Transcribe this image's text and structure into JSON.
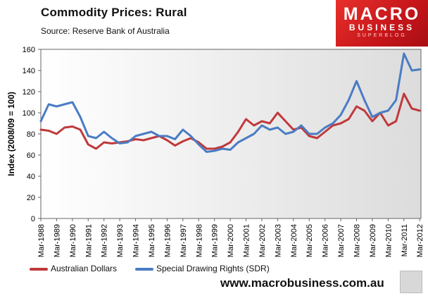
{
  "header": {
    "title": "Commodity  Prices: Rural",
    "source": "Source:  Reserve Bank of Australia"
  },
  "logo": {
    "line1": "MACRO",
    "line2": "BUSINESS",
    "line3": "SUPERBLOG"
  },
  "footer": {
    "url": "www.macrobusiness.com.au"
  },
  "colors": {
    "aud": "#c0393b",
    "sdr": "#4a7cc4"
  },
  "chart_data": {
    "type": "line",
    "title": "Commodity  Prices: Rural",
    "xlabel": "",
    "ylabel": "Index (2008/09  = 100)",
    "ylim": [
      0,
      160
    ],
    "yticks": [
      "0",
      "20",
      "40",
      "60",
      "80",
      "100",
      "120",
      "140",
      "160"
    ],
    "xticks": [
      "Mar-1988",
      "Mar-1989",
      "Mar-1990",
      "Mar-1991",
      "Mar-1992",
      "Mar-1993",
      "Mar-1994",
      "Mar-1995",
      "Mar-1996",
      "Mar-1997",
      "Mar-1998",
      "Mar-1999",
      "Mar-2000",
      "Mar-2001",
      "Mar-2002",
      "Mar-2003",
      "Mar-2004",
      "Mar-2005",
      "Mar-2006",
      "Mar-2007",
      "Mar-2008",
      "Mar-2009",
      "Mar-2010",
      "Mar-2011",
      "Mar-2012"
    ],
    "x": [
      1988.0,
      1988.5,
      1989.0,
      1989.5,
      1990.0,
      1990.5,
      1991.0,
      1991.5,
      1992.0,
      1992.5,
      1993.0,
      1993.5,
      1994.0,
      1994.5,
      1995.0,
      1995.5,
      1996.0,
      1996.5,
      1997.0,
      1997.5,
      1998.0,
      1998.5,
      1999.0,
      1999.5,
      2000.0,
      2000.5,
      2001.0,
      2001.5,
      2002.0,
      2002.5,
      2003.0,
      2003.5,
      2004.0,
      2004.5,
      2005.0,
      2005.5,
      2006.0,
      2006.5,
      2007.0,
      2007.5,
      2008.0,
      2008.5,
      2009.0,
      2009.5,
      2010.0,
      2010.5,
      2011.0,
      2011.5,
      2012.0
    ],
    "series": [
      {
        "name": "Australian Dollars",
        "color": "#c0393b",
        "values": [
          84,
          83,
          80,
          86,
          87,
          84,
          70,
          66,
          72,
          71,
          72,
          73,
          75,
          74,
          76,
          78,
          74,
          69,
          73,
          76,
          72,
          66,
          66,
          68,
          72,
          82,
          94,
          88,
          92,
          90,
          100,
          92,
          84,
          86,
          78,
          76,
          82,
          88,
          90,
          94,
          106,
          102,
          92,
          100,
          88,
          92,
          118,
          104,
          102
        ]
      },
      {
        "name": "Special Drawing Rights (SDR)",
        "color": "#4a7cc4",
        "values": [
          92,
          108,
          106,
          108,
          110,
          96,
          78,
          76,
          82,
          76,
          71,
          72,
          78,
          80,
          82,
          78,
          78,
          75,
          84,
          78,
          70,
          63,
          64,
          66,
          65,
          72,
          76,
          80,
          88,
          84,
          86,
          80,
          82,
          88,
          80,
          80,
          86,
          90,
          98,
          112,
          130,
          112,
          96,
          100,
          102,
          112,
          156,
          140,
          141
        ]
      }
    ],
    "legend": "bottom-left"
  }
}
